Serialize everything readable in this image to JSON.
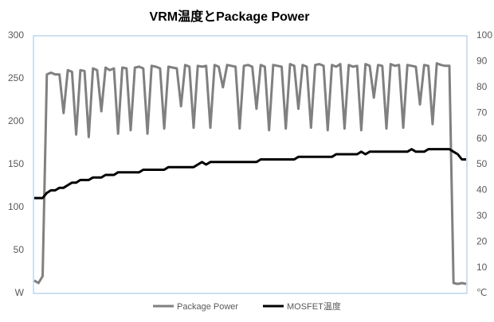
{
  "chart_data": {
    "type": "line",
    "title": "VRM温度とPackage Power",
    "ylim": [
      0,
      300
    ],
    "yticks": [
      {
        "value": 0,
        "label": "W"
      },
      50,
      100,
      150,
      200,
      250,
      300
    ],
    "y2lim": [
      0,
      100
    ],
    "y2ticks": [
      {
        "value": 0,
        "label": "℃"
      },
      10,
      20,
      30,
      40,
      50,
      60,
      70,
      80,
      90,
      100
    ],
    "series": [
      {
        "name": "Package Power",
        "color": "#808080",
        "values": [
          15,
          12,
          20,
          255,
          257,
          255,
          255,
          210,
          260,
          258,
          185,
          260,
          259,
          182,
          262,
          260,
          212,
          263,
          260,
          262,
          186,
          263,
          262,
          190,
          263,
          264,
          262,
          186,
          265,
          264,
          262,
          192,
          264,
          263,
          262,
          218,
          266,
          264,
          193,
          265,
          264,
          265,
          193,
          266,
          264,
          240,
          266,
          265,
          264,
          192,
          265,
          266,
          264,
          215,
          266,
          264,
          190,
          266,
          265,
          264,
          192,
          267,
          265,
          215,
          266,
          264,
          193,
          266,
          267,
          265,
          190,
          266,
          264,
          267,
          192,
          266,
          264,
          265,
          190,
          267,
          265,
          228,
          266,
          265,
          192,
          267,
          265,
          266,
          193,
          266,
          265,
          264,
          220,
          266,
          265,
          197,
          268,
          266,
          265,
          265,
          12,
          11,
          12,
          11
        ]
      },
      {
        "name": "MOSFET温度",
        "color": "#000000",
        "axis": "y2",
        "values": [
          37,
          37,
          37,
          39,
          40,
          40,
          41,
          41,
          42,
          43,
          43,
          44,
          44,
          44,
          45,
          45,
          45,
          46,
          46,
          46,
          47,
          47,
          47,
          47,
          47,
          47,
          48,
          48,
          48,
          48,
          48,
          48,
          49,
          49,
          49,
          49,
          49,
          49,
          49,
          50,
          51,
          50,
          51,
          51,
          51,
          51,
          51,
          51,
          51,
          51,
          51,
          51,
          51,
          51,
          52,
          52,
          52,
          52,
          52,
          52,
          52,
          52,
          52,
          53,
          53,
          53,
          53,
          53,
          53,
          53,
          53,
          53,
          54,
          54,
          54,
          54,
          54,
          54,
          55,
          54,
          55,
          55,
          55,
          55,
          55,
          55,
          55,
          55,
          55,
          55,
          56,
          55,
          55,
          55,
          56,
          56,
          56,
          56,
          56,
          56,
          55,
          54,
          52,
          52
        ]
      }
    ]
  }
}
